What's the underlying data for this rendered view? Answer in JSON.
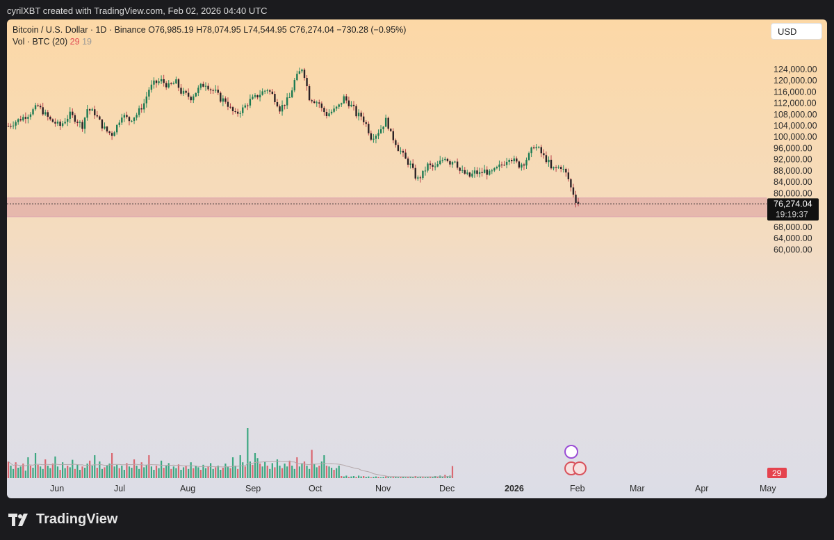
{
  "header": {
    "text": "cyrilXBT created with TradingView.com, Feb 02, 2026 04:40 UTC"
  },
  "legend": {
    "line1": "Bitcoin / U.S. Dollar · 1D · Binance",
    "open": "O76,985.19",
    "high": "H78,074.95",
    "low": "L74,544.95",
    "close": "C76,274.04",
    "change": "−730.28 (−0.95%)",
    "vol_label": "Vol · BTC (20)",
    "vol_value": "29",
    "vol_ma": "19"
  },
  "currency_button": "USD",
  "price_tag": {
    "price": "76,274.04",
    "countdown": "19:19:37"
  },
  "vol_tag": "29",
  "footer": {
    "brand": "TradingView"
  },
  "colors": {
    "up": "#1e9e6e",
    "down": "#d9525c",
    "zone": "#d99a9f",
    "candle_up": "#2a8a5f",
    "candle_down": "#b8424b"
  },
  "chart_data": {
    "type": "candlestick",
    "price_axis": {
      "ticks": [
        "124,000.00",
        "120,000.00",
        "116,000.00",
        "112,000.00",
        "108,000.00",
        "104,000.00",
        "100,000.00",
        "96,000.00",
        "92,000.00",
        "88,000.00",
        "84,000.00",
        "80,000.00",
        "72,000.00",
        "68,000.00",
        "64,000.00",
        "60,000.00"
      ]
    },
    "time_axis": {
      "labels": [
        "Jun",
        "Jul",
        "Aug",
        "Sep",
        "Oct",
        "Nov",
        "Dec",
        "2026",
        "Feb",
        "Mar",
        "Apr",
        "May"
      ]
    },
    "ylim": [
      58000,
      129500
    ],
    "support_zone": [
      71700,
      78400
    ],
    "last_close": 76274.04,
    "price_path": [
      [
        0,
        104000
      ],
      [
        8,
        108000
      ],
      [
        12,
        111000
      ],
      [
        17,
        106000
      ],
      [
        21,
        104000
      ],
      [
        25,
        108000
      ],
      [
        27,
        106500
      ],
      [
        30,
        104000
      ],
      [
        32,
        110000
      ],
      [
        35,
        108500
      ],
      [
        38,
        104000
      ],
      [
        40,
        102000
      ],
      [
        42,
        101000
      ],
      [
        44,
        104000
      ],
      [
        46,
        108000
      ],
      [
        49,
        106000
      ],
      [
        52,
        108000
      ],
      [
        55,
        112000
      ],
      [
        57,
        117000
      ],
      [
        59,
        119000
      ],
      [
        62,
        120000
      ],
      [
        65,
        118000
      ],
      [
        68,
        119500
      ],
      [
        70,
        116000
      ],
      [
        72,
        115000
      ],
      [
        74,
        114000
      ],
      [
        76,
        116000
      ],
      [
        78,
        118000
      ],
      [
        80,
        119000
      ],
      [
        82,
        117000
      ],
      [
        84,
        116000
      ],
      [
        86,
        113500
      ],
      [
        88,
        113000
      ],
      [
        90,
        110000
      ],
      [
        92,
        108000
      ],
      [
        95,
        110000
      ],
      [
        98,
        113000
      ],
      [
        100,
        114000
      ],
      [
        103,
        116000
      ],
      [
        105,
        117000
      ],
      [
        107,
        115000
      ],
      [
        109,
        112000
      ],
      [
        110,
        110000
      ],
      [
        112,
        112000
      ],
      [
        114,
        114000
      ],
      [
        116,
        120000
      ],
      [
        118,
        123000
      ],
      [
        119,
        124500
      ],
      [
        120,
        122000
      ],
      [
        121,
        118000
      ],
      [
        122,
        114000
      ],
      [
        124,
        113000
      ],
      [
        126,
        112000
      ],
      [
        127,
        110000
      ],
      [
        129,
        108000
      ],
      [
        130,
        108500
      ],
      [
        132,
        109500
      ],
      [
        134,
        111000
      ],
      [
        136,
        114000
      ],
      [
        138,
        112000
      ],
      [
        140,
        110000
      ],
      [
        141,
        108000
      ],
      [
        143,
        107500
      ],
      [
        145,
        104500
      ],
      [
        147,
        100000
      ],
      [
        149,
        101000
      ],
      [
        151,
        103000
      ],
      [
        153,
        106000
      ],
      [
        154,
        104000
      ],
      [
        155,
        101000
      ],
      [
        157,
        98000
      ],
      [
        158,
        96000
      ],
      [
        159,
        95000
      ],
      [
        161,
        92000
      ],
      [
        163,
        90000
      ],
      [
        165,
        86000
      ],
      [
        166,
        85000
      ],
      [
        168,
        87000
      ],
      [
        170,
        90000
      ],
      [
        173,
        89000
      ],
      [
        175,
        91000
      ],
      [
        177,
        93000
      ],
      [
        179,
        91000
      ],
      [
        181,
        92000
      ],
      [
        183,
        88000
      ],
      [
        185,
        87000
      ],
      [
        187,
        86000
      ],
      [
        189,
        87500
      ],
      [
        191,
        87000
      ],
      [
        193,
        88000
      ],
      [
        195,
        87000
      ],
      [
        197,
        88000
      ],
      [
        199,
        89500
      ],
      [
        201,
        91000
      ],
      [
        203,
        93000
      ],
      [
        205,
        91500
      ],
      [
        207,
        90000
      ],
      [
        209,
        91000
      ],
      [
        211,
        93500
      ],
      [
        213,
        97000
      ],
      [
        215,
        95500
      ],
      [
        217,
        93000
      ],
      [
        219,
        91000
      ],
      [
        220,
        88500
      ],
      [
        222,
        89000
      ],
      [
        224,
        89500
      ],
      [
        226,
        87000
      ],
      [
        227,
        85000
      ],
      [
        228,
        82000
      ],
      [
        229,
        80000
      ],
      [
        230,
        77500
      ],
      [
        231,
        76274
      ]
    ],
    "volume": {
      "label": "Vol · BTC (20)",
      "last": 29,
      "ma20": 19,
      "bars": [
        40,
        30,
        22,
        38,
        25,
        28,
        35,
        18,
        50,
        30,
        25,
        60,
        32,
        28,
        22,
        45,
        30,
        24,
        35,
        52,
        28,
        20,
        38,
        24,
        30,
        26,
        44,
        22,
        33,
        20,
        28,
        25,
        35,
        42,
        30,
        55,
        25,
        40,
        22,
        26,
        30,
        35,
        60,
        28,
        32,
        24,
        30,
        20,
        36,
        28,
        25,
        45,
        30,
        22,
        38,
        26,
        32,
        55,
        28,
        20,
        30,
        24,
        42,
        25,
        30,
        36,
        22,
        28,
        24,
        33,
        20,
        26,
        30,
        22,
        38,
        24,
        30,
        26,
        20,
        32,
        24,
        28,
        36,
        22,
        26,
        30,
        20,
        25,
        35,
        28,
        24,
        50,
        30,
        22,
        55,
        38,
        28,
        120,
        40,
        32,
        60,
        48,
        35,
        28,
        40,
        30,
        22,
        36,
        26,
        45,
        30,
        24,
        35,
        28,
        42,
        30,
        22,
        50,
        28,
        36,
        40,
        30,
        22,
        68,
        34,
        26,
        30,
        40,
        55,
        30,
        28,
        25,
        20,
        24,
        30,
        5,
        4,
        6,
        3,
        4,
        5,
        3,
        6,
        4,
        5,
        3,
        4,
        2,
        3,
        4,
        3,
        2,
        3,
        4,
        3,
        2,
        3,
        3,
        2,
        4,
        3,
        2,
        3,
        4,
        3,
        5,
        3,
        4,
        4,
        2,
        3,
        4,
        3,
        5,
        3,
        6,
        4,
        8,
        5,
        6,
        29
      ]
    }
  }
}
